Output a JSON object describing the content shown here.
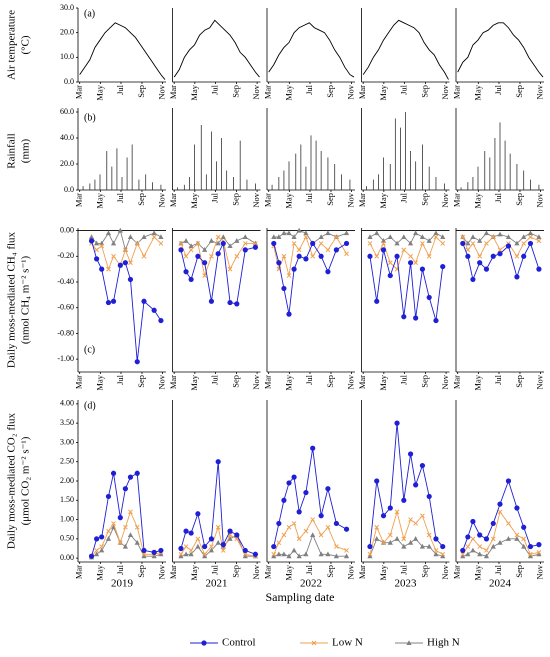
{
  "xaxis": {
    "xlim": [
      55,
      315
    ],
    "xticks": [
      {
        "value": 60,
        "label": "Mar"
      },
      {
        "value": 121,
        "label": "May"
      },
      {
        "value": 182,
        "label": "Jul"
      },
      {
        "value": 244,
        "label": "Sep"
      },
      {
        "value": 305,
        "label": "Nov"
      }
    ]
  },
  "years": [
    "2019",
    "2021",
    "2022",
    "2023",
    "2024"
  ],
  "xlabel": "Sampling date",
  "chart_data": [
    {
      "type": "line",
      "label": "(a)",
      "ylabel": [
        "Air temperature",
        "(°C)"
      ],
      "color": "#000000",
      "ylim": [
        0,
        30
      ],
      "yticks": [
        {
          "value": 0,
          "label": "0.0"
        },
        {
          "value": 10,
          "label": "10.0"
        },
        {
          "value": 20,
          "label": "20.0"
        },
        {
          "value": 30,
          "label": "30.0"
        }
      ],
      "x": [
        [
          60,
          75,
          90,
          105,
          120,
          135,
          150,
          165,
          180,
          195,
          210,
          225,
          240,
          255,
          270,
          285,
          300,
          312
        ],
        [
          60,
          75,
          90,
          105,
          120,
          135,
          150,
          165,
          180,
          195,
          210,
          225,
          240,
          255,
          270,
          285,
          300,
          312
        ],
        [
          60,
          75,
          90,
          105,
          120,
          135,
          150,
          165,
          180,
          195,
          210,
          225,
          240,
          255,
          270,
          285,
          300,
          312
        ],
        [
          60,
          75,
          90,
          105,
          120,
          135,
          150,
          165,
          180,
          195,
          210,
          225,
          240,
          255,
          270,
          285,
          300,
          312
        ],
        [
          60,
          75,
          90,
          105,
          120,
          135,
          150,
          165,
          180,
          195,
          210,
          225,
          240,
          255,
          270,
          285,
          300,
          312
        ]
      ],
      "values": [
        [
          3,
          6,
          9,
          14,
          17,
          20,
          22,
          24,
          23,
          22,
          20,
          18,
          15,
          12,
          9,
          6,
          3,
          1
        ],
        [
          2,
          5,
          10,
          13,
          15,
          19,
          21,
          22,
          25,
          23,
          21,
          19,
          16,
          12,
          10,
          7,
          4,
          2
        ],
        [
          4,
          7,
          11,
          14,
          16,
          20,
          22,
          23,
          24,
          22,
          21,
          20,
          17,
          13,
          10,
          6,
          3,
          2
        ],
        [
          3,
          6,
          10,
          13,
          17,
          20,
          23,
          25,
          24,
          23,
          22,
          20,
          16,
          13,
          11,
          7,
          4,
          1
        ],
        [
          4,
          8,
          10,
          15,
          17,
          20,
          21,
          23,
          24,
          24,
          22,
          19,
          17,
          14,
          10,
          7,
          4,
          2
        ]
      ]
    },
    {
      "type": "bar",
      "label": "(b)",
      "ylabel": [
        "Rainfall",
        "(mm)"
      ],
      "color": "#333333",
      "ylim": [
        0,
        60
      ],
      "yticks": [
        {
          "value": 0,
          "label": "0.0"
        },
        {
          "value": 20,
          "label": "20.0"
        },
        {
          "value": 40,
          "label": "40.0"
        },
        {
          "value": 60,
          "label": "60.0"
        }
      ],
      "x": [
        [
          70,
          90,
          105,
          120,
          140,
          155,
          170,
          185,
          200,
          215,
          235,
          255,
          275,
          300
        ],
        [
          70,
          90,
          105,
          120,
          140,
          155,
          170,
          185,
          200,
          215,
          235,
          255,
          275,
          300
        ],
        [
          70,
          90,
          105,
          120,
          140,
          155,
          170,
          185,
          200,
          215,
          235,
          255,
          275,
          300
        ],
        [
          70,
          90,
          105,
          120,
          140,
          155,
          170,
          185,
          200,
          215,
          235,
          255,
          275,
          300
        ],
        [
          70,
          90,
          105,
          120,
          140,
          155,
          170,
          185,
          200,
          215,
          235,
          255,
          275,
          300
        ]
      ],
      "values": [
        [
          3,
          5,
          8,
          12,
          30,
          18,
          32,
          10,
          25,
          35,
          8,
          12,
          6,
          4
        ],
        [
          2,
          4,
          10,
          35,
          50,
          12,
          45,
          22,
          40,
          15,
          10,
          38,
          8,
          5
        ],
        [
          4,
          10,
          15,
          22,
          28,
          35,
          18,
          42,
          38,
          30,
          25,
          20,
          12,
          8
        ],
        [
          3,
          8,
          12,
          25,
          20,
          55,
          48,
          60,
          30,
          22,
          35,
          18,
          10,
          5
        ],
        [
          2,
          6,
          10,
          18,
          30,
          25,
          40,
          52,
          38,
          28,
          20,
          15,
          8,
          4
        ]
      ]
    },
    {
      "type": "line",
      "label": "(c)",
      "ylabel": [
        "Daily moss-mediated CH₄ flux",
        "(nmol CH₄ m⁻² s⁻¹)"
      ],
      "ylim": [
        -1.1,
        0.02
      ],
      "yticks": [
        {
          "value": 0,
          "label": "0.00"
        },
        {
          "value": -0.2,
          "label": "-0.20"
        },
        {
          "value": -0.4,
          "label": "-0.40"
        },
        {
          "value": -0.6,
          "label": "-0.60"
        },
        {
          "value": -0.8,
          "label": "-0.80"
        },
        {
          "value": -1.0,
          "label": "-1.00"
        }
      ],
      "x": [
        [
          95,
          110,
          125,
          145,
          160,
          180,
          195,
          210,
          230,
          250,
          280,
          300
        ],
        [
          80,
          95,
          110,
          130,
          150,
          170,
          190,
          205,
          225,
          245,
          270,
          300
        ],
        [
          75,
          90,
          105,
          120,
          135,
          150,
          170,
          190,
          215,
          235,
          260,
          290
        ],
        [
          80,
          100,
          120,
          140,
          160,
          180,
          200,
          215,
          235,
          255,
          275,
          295
        ],
        [
          75,
          90,
          105,
          125,
          145,
          165,
          185,
          210,
          235,
          255,
          275,
          300
        ]
      ],
      "series": [
        {
          "name": "Control",
          "color": "#1f1fd6",
          "values": [
            [
              -0.08,
              -0.22,
              -0.3,
              -0.56,
              -0.55,
              -0.27,
              -0.25,
              -0.38,
              -1.02,
              -0.55,
              -0.62,
              -0.7
            ],
            [
              -0.15,
              -0.32,
              -0.38,
              -0.2,
              -0.25,
              -0.55,
              -0.18,
              -0.1,
              -0.56,
              -0.57,
              -0.15,
              -0.13
            ],
            [
              -0.1,
              -0.25,
              -0.45,
              -0.65,
              -0.3,
              -0.2,
              -0.22,
              -0.1,
              -0.2,
              -0.32,
              -0.15,
              -0.1
            ],
            [
              -0.2,
              -0.55,
              -0.15,
              -0.35,
              -0.2,
              -0.67,
              -0.25,
              -0.68,
              -0.3,
              -0.52,
              -0.7,
              -0.28
            ],
            [
              -0.1,
              -0.2,
              -0.38,
              -0.25,
              -0.3,
              -0.2,
              -0.18,
              -0.12,
              -0.36,
              -0.2,
              -0.1,
              -0.3
            ]
          ]
        },
        {
          "name": "Low N",
          "color": "#f0a050",
          "values": [
            [
              -0.1,
              -0.15,
              -0.12,
              -0.3,
              -0.2,
              -0.27,
              -0.15,
              -0.25,
              -0.1,
              -0.2,
              -0.05,
              -0.1
            ],
            [
              -0.1,
              -0.2,
              -0.15,
              -0.1,
              -0.35,
              -0.2,
              -0.05,
              -0.08,
              -0.3,
              -0.2,
              -0.1,
              -0.1
            ],
            [
              -0.12,
              -0.3,
              -0.2,
              -0.35,
              -0.1,
              -0.15,
              -0.05,
              -0.2,
              -0.1,
              -0.15,
              -0.05,
              -0.18
            ],
            [
              -0.1,
              -0.2,
              -0.1,
              -0.25,
              -0.3,
              -0.15,
              -0.2,
              -0.25,
              -0.1,
              -0.2,
              -0.05,
              -0.1
            ],
            [
              -0.05,
              -0.15,
              -0.1,
              -0.2,
              -0.1,
              -0.05,
              -0.15,
              -0.1,
              -0.2,
              -0.1,
              -0.05,
              -0.08
            ]
          ]
        },
        {
          "name": "High N",
          "color": "#808080",
          "values": [
            [
              -0.05,
              -0.1,
              -0.1,
              -0.02,
              -0.1,
              0,
              -0.15,
              -0.05,
              -0.1,
              -0.05,
              -0.02,
              -0.05
            ],
            [
              -0.1,
              -0.08,
              -0.12,
              -0.1,
              -0.15,
              -0.08,
              -0.1,
              -0.05,
              -0.12,
              -0.08,
              -0.05,
              -0.1
            ],
            [
              -0.05,
              -0.05,
              -0.02,
              -0.02,
              -0.05,
              0,
              -0.02,
              -0.1,
              -0.05,
              -0.02,
              -0.05,
              -0.02
            ],
            [
              -0.05,
              -0.02,
              -0.08,
              -0.05,
              -0.1,
              -0.05,
              -0.1,
              -0.02,
              -0.05,
              -0.08,
              -0.02,
              -0.05
            ],
            [
              -0.05,
              -0.1,
              -0.05,
              -0.08,
              -0.02,
              -0.05,
              -0.03,
              -0.05,
              -0.1,
              -0.05,
              -0.02,
              -0.05
            ]
          ]
        }
      ]
    },
    {
      "type": "line",
      "label": "(d)",
      "ylabel": [
        "Daily moss-mediated CO₂ flux",
        "(μmol CO₂ m⁻² s⁻¹)"
      ],
      "ylim": [
        -0.1,
        4.1
      ],
      "yticks": [
        {
          "value": 0,
          "label": "0.00"
        },
        {
          "value": 0.5,
          "label": "0.50"
        },
        {
          "value": 1,
          "label": "1.00"
        },
        {
          "value": 1.5,
          "label": "1.50"
        },
        {
          "value": 2,
          "label": "2.00"
        },
        {
          "value": 2.5,
          "label": "2.50"
        },
        {
          "value": 3,
          "label": "3.00"
        },
        {
          "value": 3.5,
          "label": "3.50"
        },
        {
          "value": 4,
          "label": "4.00"
        }
      ],
      "x": [
        [
          95,
          110,
          125,
          145,
          160,
          180,
          195,
          210,
          230,
          250,
          280,
          300
        ],
        [
          80,
          95,
          110,
          130,
          150,
          170,
          190,
          205,
          225,
          245,
          270,
          300
        ],
        [
          75,
          90,
          105,
          120,
          135,
          150,
          170,
          190,
          215,
          235,
          260,
          290
        ],
        [
          80,
          100,
          120,
          140,
          160,
          180,
          200,
          215,
          235,
          255,
          275,
          295
        ],
        [
          75,
          90,
          105,
          125,
          145,
          165,
          185,
          210,
          235,
          255,
          275,
          300
        ]
      ],
      "series": [
        {
          "name": "Control",
          "color": "#1f1fd6",
          "values": [
            [
              0.05,
              0.5,
              0.55,
              1.6,
              2.2,
              1.05,
              1.8,
              2.1,
              2.2,
              0.2,
              0.15,
              0.2
            ],
            [
              0.25,
              0.7,
              0.65,
              1.15,
              0.3,
              0.5,
              2.5,
              0.35,
              0.7,
              0.6,
              0.2,
              0.1
            ],
            [
              0.3,
              0.9,
              1.5,
              1.95,
              2.1,
              1.2,
              1.7,
              2.85,
              1.1,
              1.8,
              0.9,
              0.75
            ],
            [
              0.3,
              2.0,
              1.1,
              1.3,
              3.5,
              1.5,
              2.7,
              1.9,
              2.4,
              1.6,
              0.5,
              0.3
            ],
            [
              0.2,
              0.55,
              0.95,
              0.6,
              0.5,
              0.9,
              1.4,
              2.0,
              1.3,
              0.8,
              0.3,
              0.35
            ]
          ]
        },
        {
          "name": "Low N",
          "color": "#f0a050",
          "values": [
            [
              0.05,
              0.2,
              0.3,
              0.7,
              0.9,
              0.4,
              0.8,
              1.2,
              0.8,
              0.1,
              0.1,
              0.15
            ],
            [
              0.1,
              0.3,
              0.2,
              0.5,
              0.1,
              0.3,
              0.8,
              0.2,
              0.6,
              0.5,
              0.1,
              0.05
            ],
            [
              0.1,
              0.4,
              0.6,
              0.8,
              0.9,
              0.5,
              0.7,
              1.0,
              0.6,
              0.8,
              0.3,
              0.2
            ],
            [
              0.1,
              0.8,
              0.4,
              0.6,
              1.2,
              0.5,
              1.0,
              0.9,
              1.1,
              0.6,
              0.2,
              0.1
            ],
            [
              0.1,
              0.3,
              0.5,
              0.3,
              0.2,
              0.5,
              1.2,
              0.9,
              0.6,
              0.5,
              0.1,
              0.15
            ]
          ]
        },
        {
          "name": "High N",
          "color": "#808080",
          "values": [
            [
              0.02,
              0.1,
              0.2,
              0.5,
              0.8,
              0.4,
              0.3,
              0.6,
              0.4,
              0.05,
              0.05,
              0.1
            ],
            [
              0.05,
              0.1,
              0.1,
              0.3,
              0.05,
              0.2,
              0.4,
              0.3,
              0.5,
              0.6,
              0.05,
              0.05
            ],
            [
              0.05,
              0.1,
              0.1,
              0.05,
              0.2,
              0.05,
              0.1,
              0.6,
              0.1,
              0.1,
              0.05,
              0.05
            ],
            [
              0.05,
              0.5,
              0.4,
              0.4,
              0.5,
              0.3,
              0.4,
              0.5,
              0.3,
              0.3,
              0.1,
              0.05
            ],
            [
              0.05,
              0.1,
              0.2,
              0.1,
              0.05,
              0.3,
              0.4,
              0.5,
              0.5,
              0.3,
              0.05,
              0.1
            ]
          ]
        }
      ]
    }
  ]
}
